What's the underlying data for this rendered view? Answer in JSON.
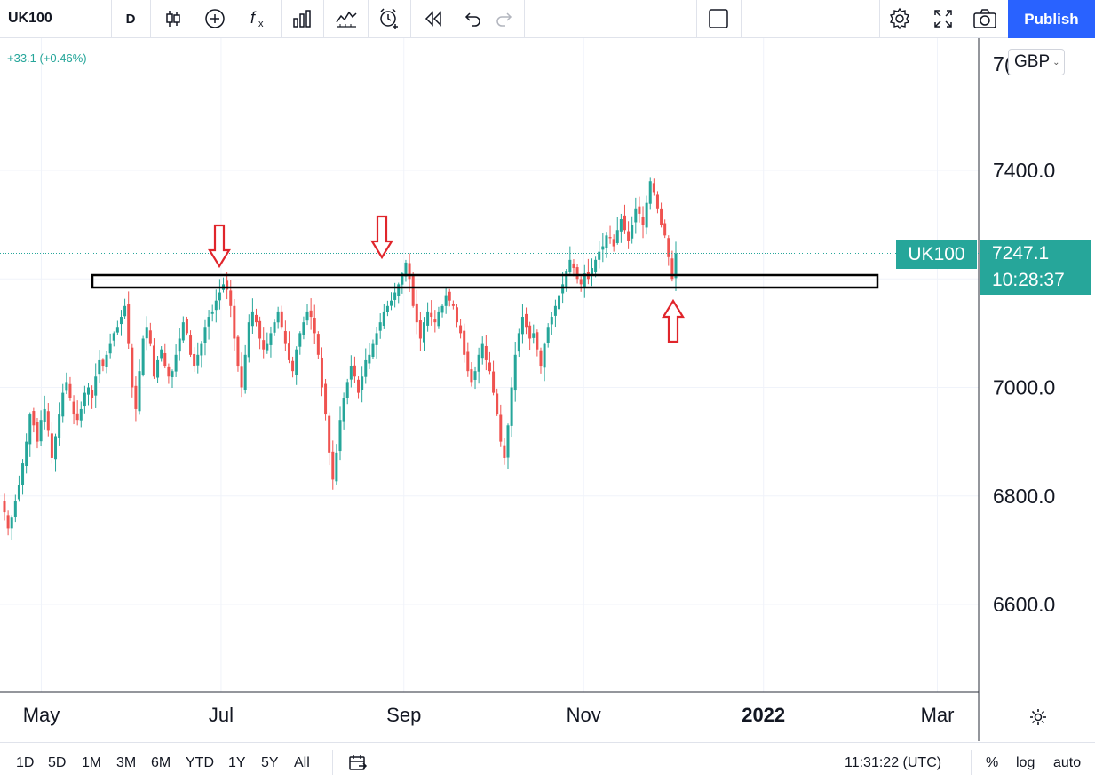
{
  "toolbar": {
    "symbol": "UK100",
    "interval": "D",
    "icons": [
      "candles-icon",
      "add-indicator-icon",
      "fx-icon",
      "bar-chart-icon",
      "compare-icon",
      "alert-icon",
      "replay-icon",
      "undo-icon",
      "redo-icon",
      "layout-icon",
      "settings-icon",
      "fullscreen-icon",
      "snapshot-icon"
    ],
    "publish_label": "Publish"
  },
  "header": {
    "change_text": "+33.1 (+0.46%)"
  },
  "price_scale": {
    "currency": "GBP",
    "top_label_partial": "7(",
    "current_price": "7247.1",
    "countdown": "10:28:37",
    "symbol_tag": "UK100"
  },
  "time_axis": {
    "labels": [
      "May",
      "Jul",
      "Sep",
      "Nov",
      "2022",
      "Mar"
    ]
  },
  "bottom_bar": {
    "ranges": [
      "1D",
      "5D",
      "1M",
      "3M",
      "6M",
      "YTD",
      "1Y",
      "5Y",
      "All"
    ],
    "clock": "11:31:22 (UTC)",
    "percent_label": "%",
    "log_label": "log",
    "auto_label": "auto"
  },
  "colors": {
    "up": "#26a69a",
    "down": "#ef5350",
    "arrow": "#e0252b",
    "publish": "#2962ff"
  },
  "chart_data": {
    "type": "candlestick",
    "symbol": "UK100",
    "interval": "D",
    "y_ticks": [
      7400.0,
      7200.0,
      7000.0,
      6800.0,
      6600.0
    ],
    "y_tick_labels": [
      "7400.0",
      "7200.0",
      "7000.0",
      "6800.0",
      "6600.0"
    ],
    "ylim": [
      6450,
      7600
    ],
    "x_range": [
      "2021-04-17",
      "2022-03-15"
    ],
    "x_ticks": [
      {
        "date": "2021-05-01",
        "label": "May"
      },
      {
        "date": "2021-07-01",
        "label": "Jul"
      },
      {
        "date": "2021-09-01",
        "label": "Sep"
      },
      {
        "date": "2021-11-01",
        "label": "Nov"
      },
      {
        "date": "2022-01-01",
        "label": "2022"
      },
      {
        "date": "2022-03-01",
        "label": "Mar"
      }
    ],
    "last_price": 7247.1,
    "closes": [
      6770,
      6740,
      6760,
      6790,
      6820,
      6860,
      6900,
      6950,
      6930,
      6900,
      6940,
      6960,
      6920,
      6870,
      6910,
      6950,
      6990,
      7010,
      6980,
      6950,
      6940,
      6960,
      6990,
      7000,
      6980,
      7020,
      7050,
      7040,
      7060,
      7080,
      7100,
      7110,
      7130,
      7150,
      7080,
      7000,
      6960,
      7030,
      7090,
      7110,
      7080,
      7020,
      7050,
      7070,
      7040,
      7020,
      7030,
      7060,
      7090,
      7120,
      7100,
      7060,
      7040,
      7060,
      7080,
      7110,
      7130,
      7140,
      7160,
      7175,
      7190,
      7180,
      7150,
      7090,
      7040,
      7000,
      7060,
      7120,
      7140,
      7120,
      7090,
      7070,
      7080,
      7100,
      7120,
      7140,
      7110,
      7080,
      7050,
      7030,
      7070,
      7100,
      7120,
      7140,
      7130,
      7100,
      7060,
      7000,
      6950,
      6880,
      6830,
      6880,
      6940,
      6980,
      7010,
      7040,
      7020,
      6990,
      7020,
      7050,
      7060,
      7080,
      7100,
      7120,
      7140,
      7150,
      7160,
      7175,
      7190,
      7210,
      7230,
      7200,
      7150,
      7120,
      7090,
      7120,
      7140,
      7130,
      7120,
      7140,
      7150,
      7170,
      7160,
      7150,
      7120,
      7100,
      7060,
      7030,
      7010,
      7030,
      7060,
      7080,
      7050,
      7030,
      6990,
      6950,
      6900,
      6870,
      6930,
      7000,
      7060,
      7100,
      7130,
      7110,
      7090,
      7100,
      7070,
      7040,
      7080,
      7110,
      7130,
      7150,
      7170,
      7190,
      7215,
      7235,
      7220,
      7200,
      7190,
      7210,
      7200,
      7220,
      7235,
      7250,
      7260,
      7280,
      7275,
      7260,
      7290,
      7310,
      7290,
      7270,
      7300,
      7330,
      7320,
      7300,
      7340,
      7380,
      7360,
      7330,
      7300,
      7280,
      7240,
      7200,
      7247
    ]
  }
}
